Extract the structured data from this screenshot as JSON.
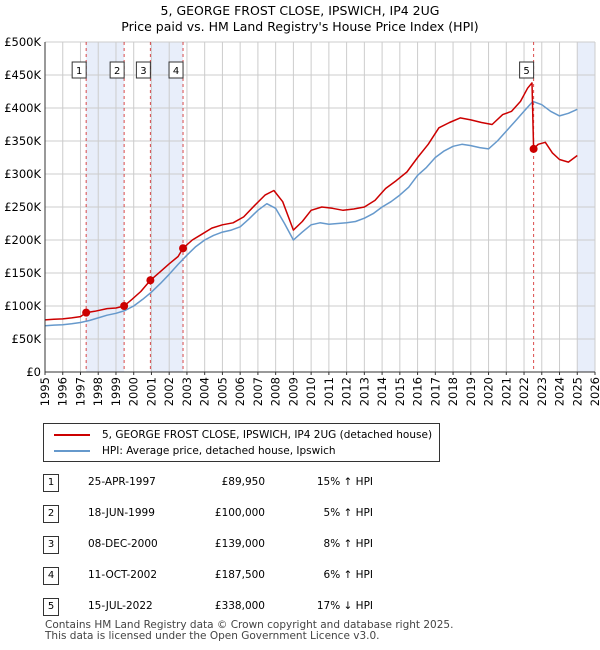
{
  "title_line1": "5, GEORGE FROST CLOSE, IPSWICH, IP4 2UG",
  "title_line2": "Price paid vs. HM Land Registry's House Price Index (HPI)",
  "chart_data": {
    "type": "line",
    "title": "5, GEORGE FROST CLOSE, IPSWICH, IP4 2UG — Price paid vs. HM Land Registry's House Price Index (HPI)",
    "xlabel": "",
    "ylabel": "",
    "xlim": [
      1995,
      2026
    ],
    "ylim": [
      0,
      500000
    ],
    "x_ticks": [
      "1995",
      "1996",
      "1997",
      "1998",
      "1999",
      "2000",
      "2001",
      "2002",
      "2003",
      "2004",
      "2005",
      "2006",
      "2007",
      "2008",
      "2009",
      "2010",
      "2011",
      "2012",
      "2013",
      "2014",
      "2015",
      "2016",
      "2017",
      "2018",
      "2019",
      "2020",
      "2021",
      "2022",
      "2023",
      "2024",
      "2025",
      "2026"
    ],
    "y_ticks": [
      {
        "value": 0,
        "label": "£0"
      },
      {
        "value": 50000,
        "label": "£50K"
      },
      {
        "value": 100000,
        "label": "£100K"
      },
      {
        "value": 150000,
        "label": "£150K"
      },
      {
        "value": 200000,
        "label": "£200K"
      },
      {
        "value": 250000,
        "label": "£250K"
      },
      {
        "value": 300000,
        "label": "£300K"
      },
      {
        "value": 350000,
        "label": "£350K"
      },
      {
        "value": 400000,
        "label": "£400K"
      },
      {
        "value": 450000,
        "label": "£450K"
      },
      {
        "value": 500000,
        "label": "£500K"
      }
    ],
    "grid": true,
    "legend_position": "below",
    "series": [
      {
        "name": "5, GEORGE FROST CLOSE, IPSWICH, IP4 2UG (detached house)",
        "color": "#cc0000",
        "x": [
          1995.0,
          1995.5,
          1996.0,
          1996.5,
          1997.0,
          1997.32,
          1997.8,
          1998.5,
          1999.0,
          1999.46,
          1999.9,
          2000.4,
          2000.94,
          2001.5,
          2002.0,
          2002.5,
          2002.78,
          2003.3,
          2003.8,
          2004.4,
          2005.0,
          2005.6,
          2006.2,
          2006.8,
          2007.4,
          2007.9,
          2008.4,
          2009.0,
          2009.5,
          2010.0,
          2010.6,
          2011.2,
          2011.8,
          2012.4,
          2013.0,
          2013.6,
          2014.2,
          2014.8,
          2015.4,
          2016.0,
          2016.6,
          2017.2,
          2017.8,
          2018.4,
          2019.0,
          2019.6,
          2020.2,
          2020.8,
          2021.3,
          2021.8,
          2022.2,
          2022.45,
          2022.54,
          2022.8,
          2023.2,
          2023.6,
          2024.0,
          2024.5,
          2025.0
        ],
        "y": [
          79000,
          80000,
          80500,
          82000,
          84000,
          89950,
          92000,
          96000,
          97000,
          100000,
          110000,
          122000,
          139000,
          152000,
          164000,
          175000,
          187500,
          200000,
          208000,
          218000,
          223000,
          226000,
          235000,
          252000,
          268000,
          275000,
          258000,
          215000,
          228000,
          245000,
          250000,
          248000,
          245000,
          247000,
          250000,
          260000,
          278000,
          290000,
          303000,
          325000,
          345000,
          370000,
          378000,
          385000,
          382000,
          378000,
          375000,
          390000,
          395000,
          410000,
          430000,
          438000,
          338000,
          345000,
          348000,
          332000,
          322000,
          318000,
          328000
        ]
      },
      {
        "name": "HPI: Average price, detached house, Ipswich",
        "color": "#6699cc",
        "x": [
          1995.0,
          1995.5,
          1996.0,
          1996.5,
          1997.0,
          1997.5,
          1998.0,
          1998.5,
          1999.0,
          1999.5,
          2000.0,
          2000.5,
          2001.0,
          2001.5,
          2002.0,
          2002.5,
          2003.0,
          2003.5,
          2004.0,
          2004.5,
          2005.0,
          2005.5,
          2006.0,
          2006.5,
          2007.0,
          2007.5,
          2008.0,
          2008.5,
          2009.0,
          2009.5,
          2010.0,
          2010.5,
          2011.0,
          2011.5,
          2012.0,
          2012.5,
          2013.0,
          2013.5,
          2014.0,
          2014.5,
          2015.0,
          2015.5,
          2016.0,
          2016.5,
          2017.0,
          2017.5,
          2018.0,
          2018.5,
          2019.0,
          2019.5,
          2020.0,
          2020.5,
          2021.0,
          2021.5,
          2022.0,
          2022.5,
          2023.0,
          2023.5,
          2024.0,
          2024.5,
          2025.0
        ],
        "y": [
          70000,
          71000,
          71500,
          73000,
          75000,
          78000,
          82000,
          86000,
          89000,
          93000,
          100000,
          110000,
          121000,
          134000,
          148000,
          163000,
          177000,
          190000,
          200000,
          207000,
          212000,
          215000,
          220000,
          232000,
          245000,
          255000,
          248000,
          225000,
          200000,
          212000,
          223000,
          226000,
          224000,
          225000,
          226000,
          228000,
          233000,
          240000,
          250000,
          258000,
          268000,
          280000,
          298000,
          310000,
          325000,
          335000,
          342000,
          345000,
          343000,
          340000,
          338000,
          350000,
          365000,
          380000,
          395000,
          410000,
          405000,
          395000,
          388000,
          392000,
          398000
        ]
      }
    ],
    "sales": [
      {
        "num": "1",
        "date": "25-APR-1997",
        "x": 1997.32,
        "price": 89950,
        "price_label": "£89,950",
        "hpi": "15% ↑ HPI"
      },
      {
        "num": "2",
        "date": "18-JUN-1999",
        "x": 1999.46,
        "price": 100000,
        "price_label": "£100,000",
        "hpi": "5% ↑ HPI"
      },
      {
        "num": "3",
        "date": "08-DEC-2000",
        "x": 2000.94,
        "price": 139000,
        "price_label": "£139,000",
        "hpi": "8% ↑ HPI"
      },
      {
        "num": "4",
        "date": "11-OCT-2002",
        "x": 2002.78,
        "price": 187500,
        "price_label": "£187,500",
        "hpi": "6% ↑ HPI"
      },
      {
        "num": "5",
        "date": "15-JUL-2022",
        "x": 2022.54,
        "price": 338000,
        "price_label": "£338,000",
        "hpi": "17% ↓ HPI"
      }
    ],
    "shaded_ranges": [
      [
        1997.32,
        1999.46
      ],
      [
        2000.94,
        2002.78
      ],
      [
        2025.0,
        2026.0
      ]
    ]
  },
  "legend": {
    "property_label": "5, GEORGE FROST CLOSE, IPSWICH, IP4 2UG (detached house)",
    "hpi_label": "HPI: Average price, detached house, Ipswich"
  },
  "colors": {
    "property": "#cc0000",
    "hpi": "#6699cc",
    "shade": "#e8eefa",
    "grid": "#cccccc"
  },
  "footer_line1": "Contains HM Land Registry data © Crown copyright and database right 2025.",
  "footer_line2": "This data is licensed under the Open Government Licence v3.0."
}
